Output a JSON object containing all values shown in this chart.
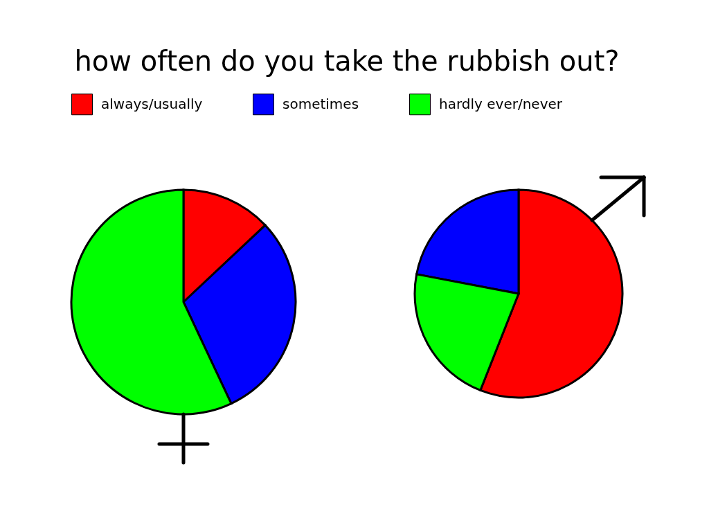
{
  "chart_data": {
    "type": "pie",
    "title": "how often do you take the rubbish out?",
    "legend": "top",
    "categories": [
      "always/usually",
      "sometimes",
      "hardly ever/never"
    ],
    "colors": [
      "#ff0000",
      "#0000ff",
      "#00ff00"
    ],
    "series": [
      {
        "values": [
          13,
          30,
          57
        ]
      },
      {
        "values": [
          56,
          22,
          22
        ]
      }
    ]
  }
}
